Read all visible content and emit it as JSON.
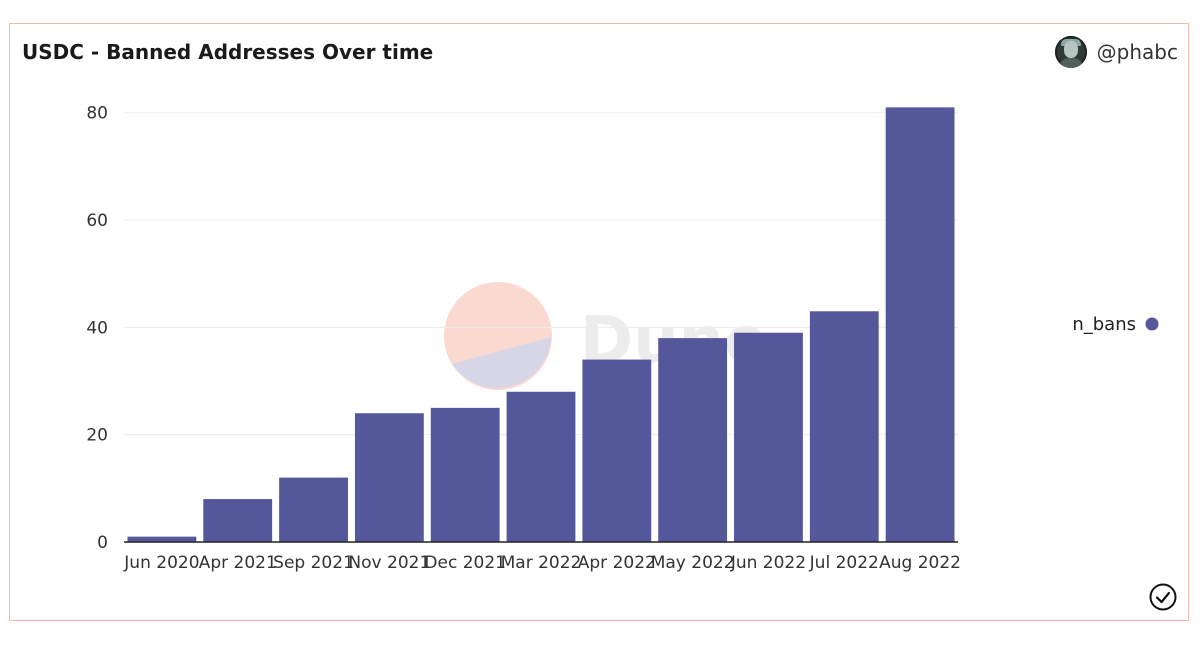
{
  "header": {
    "title": "USDC - Banned Addresses Over time",
    "author": "@phabc"
  },
  "watermark": {
    "text": "Dune"
  },
  "legend": {
    "label": "n_bans",
    "color": "#55579b"
  },
  "colors": {
    "bar": "#55579b",
    "accent_border": "#f0b9ad"
  },
  "chart_data": {
    "type": "bar",
    "title": "USDC - Banned Addresses Over time",
    "xlabel": "",
    "ylabel": "",
    "categories": [
      "Jun 2020",
      "Apr 2021",
      "Sep 2021",
      "Nov 2021",
      "Dec 2021",
      "Mar 2022",
      "Apr 2022",
      "May 2022",
      "Jun 2022",
      "Jul 2022",
      "Aug 2022"
    ],
    "series": [
      {
        "name": "n_bans",
        "values": [
          1,
          8,
          12,
          24,
          25,
          28,
          34,
          38,
          39,
          43,
          81
        ]
      }
    ],
    "yticks": [
      0,
      20,
      40,
      60,
      80
    ],
    "ylim": [
      0,
      82
    ],
    "grid": true,
    "legend_position": "right"
  }
}
